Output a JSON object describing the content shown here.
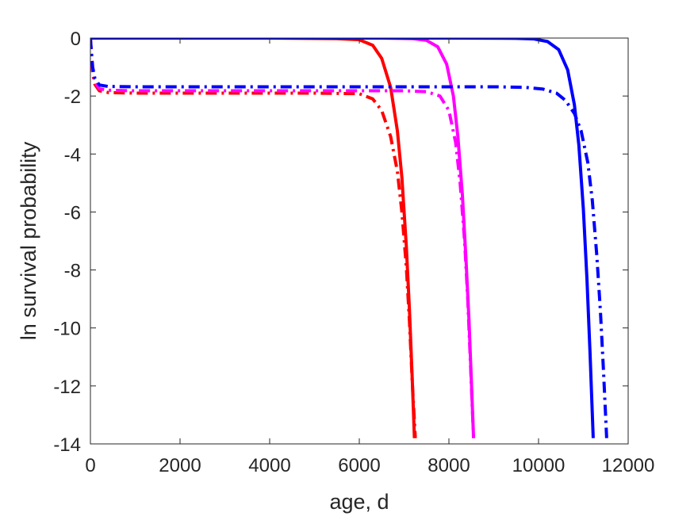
{
  "chart_data": {
    "type": "line",
    "title": "",
    "xlabel": "age, d",
    "ylabel": "ln survival probability",
    "xlim": [
      0,
      12000
    ],
    "ylim": [
      -14,
      0
    ],
    "x_ticks": [
      0,
      2000,
      4000,
      6000,
      8000,
      10000,
      12000
    ],
    "x_tick_labels": [
      "0",
      "2000",
      "4000",
      "6000",
      "8000",
      "10000",
      "12000"
    ],
    "y_ticks": [
      0,
      -2,
      -4,
      -6,
      -8,
      -10,
      -12,
      -14
    ],
    "y_tick_labels": [
      "0",
      "-2",
      "-4",
      "-6",
      "-8",
      "-10",
      "-12",
      "-14"
    ],
    "grid": false,
    "legend": "none",
    "series": [
      {
        "color": "#ff0000",
        "style": "solid",
        "x": [
          0,
          2000,
          4000,
          5500,
          6000,
          6300,
          6500,
          6700,
          6850,
          6950,
          7050,
          7120,
          7180,
          7230
        ],
        "y": [
          0,
          0,
          0,
          -0.02,
          -0.06,
          -0.25,
          -0.7,
          -1.7,
          -3.2,
          -4.8,
          -7.2,
          -9.4,
          -11.7,
          -13.8
        ]
      },
      {
        "color": "#ff0000",
        "style": "dashdot",
        "x": [
          0,
          20,
          50,
          100,
          200,
          400,
          1000,
          3000,
          5000,
          6000,
          6300,
          6500,
          6700,
          6850,
          6950,
          7050,
          7120,
          7180,
          7250
        ],
        "y": [
          0,
          -0.6,
          -1.2,
          -1.6,
          -1.82,
          -1.88,
          -1.9,
          -1.9,
          -1.9,
          -1.92,
          -2.1,
          -2.5,
          -3.4,
          -4.6,
          -6.0,
          -7.9,
          -9.8,
          -11.8,
          -13.8
        ]
      },
      {
        "color": "#ff00ff",
        "style": "solid",
        "x": [
          0,
          4000,
          6500,
          7200,
          7500,
          7750,
          7950,
          8100,
          8200,
          8300,
          8380,
          8450,
          8500,
          8550
        ],
        "y": [
          0,
          0,
          0,
          -0.02,
          -0.08,
          -0.3,
          -0.9,
          -2.0,
          -3.4,
          -5.4,
          -7.6,
          -9.8,
          -11.8,
          -13.8
        ]
      },
      {
        "color": "#ff00ff",
        "style": "dashdot",
        "x": [
          0,
          20,
          50,
          100,
          200,
          400,
          1000,
          4000,
          7000,
          7500,
          7800,
          8000,
          8150,
          8250,
          8350,
          8420,
          8480,
          8550
        ],
        "y": [
          0,
          -0.5,
          -1.1,
          -1.5,
          -1.75,
          -1.8,
          -1.82,
          -1.82,
          -1.82,
          -1.85,
          -2.0,
          -2.5,
          -3.6,
          -5.0,
          -7.0,
          -9.0,
          -11.2,
          -13.8
        ]
      },
      {
        "color": "#0000ff",
        "style": "solid",
        "x": [
          0,
          4000,
          8000,
          9500,
          9900,
          10200,
          10450,
          10650,
          10800,
          10900,
          11000,
          11080,
          11150,
          11220
        ],
        "y": [
          0,
          0,
          0,
          -0.01,
          -0.03,
          -0.12,
          -0.4,
          -1.1,
          -2.3,
          -3.7,
          -5.9,
          -8.3,
          -10.9,
          -13.8
        ]
      },
      {
        "color": "#0000ff",
        "style": "dashdot",
        "x": [
          0,
          20,
          50,
          100,
          200,
          400,
          1000,
          5000,
          9000,
          9700,
          10100,
          10400,
          10600,
          10800,
          10950,
          11100,
          11200,
          11300,
          11380,
          11450,
          11520
        ],
        "y": [
          0,
          -0.45,
          -1.0,
          -1.4,
          -1.62,
          -1.67,
          -1.68,
          -1.68,
          -1.68,
          -1.7,
          -1.76,
          -1.9,
          -2.15,
          -2.6,
          -3.2,
          -4.3,
          -5.6,
          -7.5,
          -9.4,
          -11.5,
          -13.8
        ]
      }
    ]
  }
}
